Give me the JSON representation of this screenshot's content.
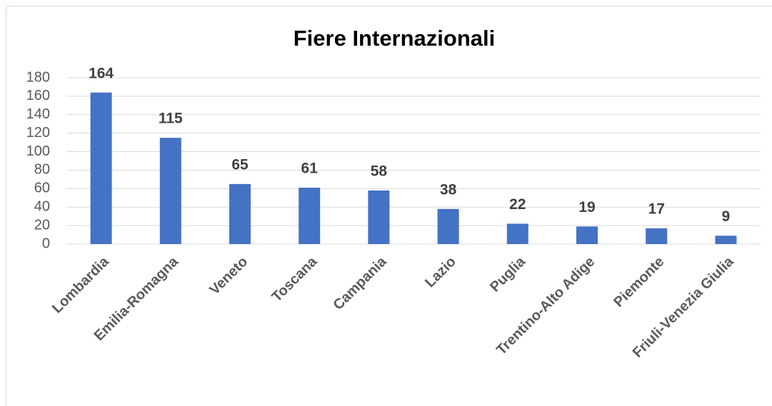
{
  "chart_data": {
    "type": "bar",
    "title": "Fiere Internazionali",
    "categories": [
      "Lombardia",
      "Emilia-Romagna",
      "Veneto",
      "Toscana",
      "Campania",
      "Lazio",
      "Puglia",
      "Trentino-Alto Adige",
      "Piemonte",
      "Friuli-Venezia Giulia"
    ],
    "values": [
      164,
      115,
      65,
      61,
      58,
      38,
      22,
      19,
      17,
      9
    ],
    "color": "#4472c4",
    "ylim": [
      0,
      180
    ],
    "yticks": [
      0,
      20,
      40,
      60,
      80,
      100,
      120,
      140,
      160,
      180
    ],
    "grid": true
  }
}
